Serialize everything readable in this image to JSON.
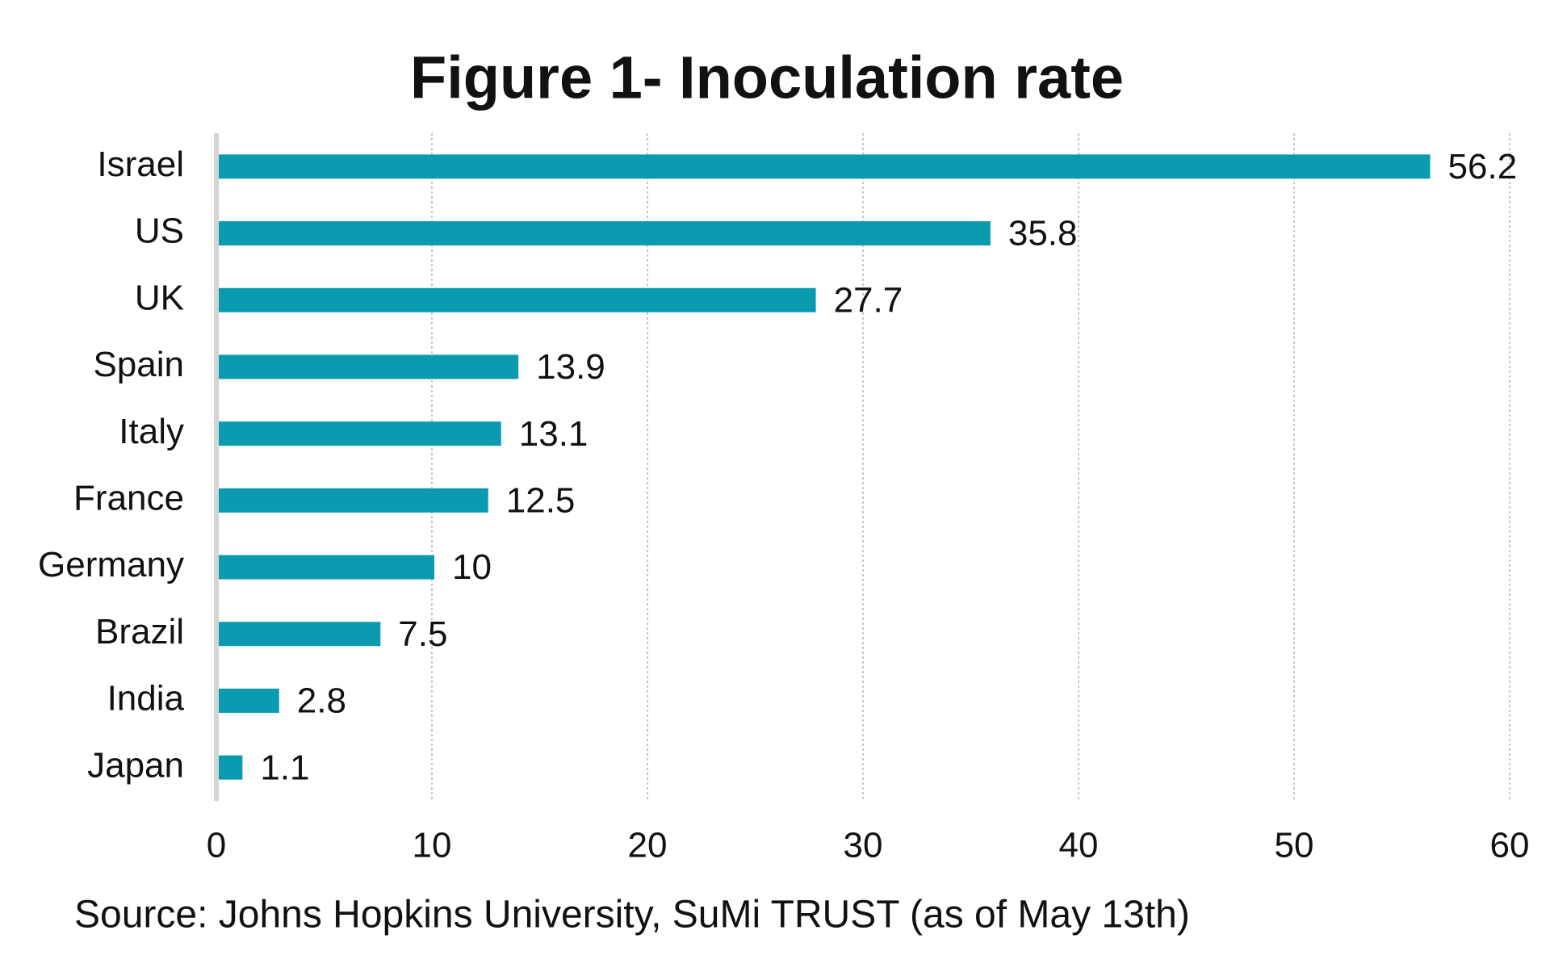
{
  "chart_data": {
    "type": "bar",
    "orientation": "horizontal",
    "title": "Figure 1- Inoculation rate",
    "source": "Source: Johns Hopkins University, SuMi TRUST (as of May 13th)",
    "categories": [
      "Israel",
      "US",
      "UK",
      "Spain",
      "Italy",
      "France",
      "Germany",
      "Brazil",
      "India",
      "Japan"
    ],
    "values": [
      56.2,
      35.8,
      27.7,
      13.9,
      13.1,
      12.5,
      10,
      7.5,
      2.8,
      1.1
    ],
    "color": "#0b9bb1",
    "xlim": [
      0,
      60
    ],
    "xticks": [
      0,
      10,
      20,
      30,
      40,
      50,
      60
    ],
    "grid": true
  }
}
